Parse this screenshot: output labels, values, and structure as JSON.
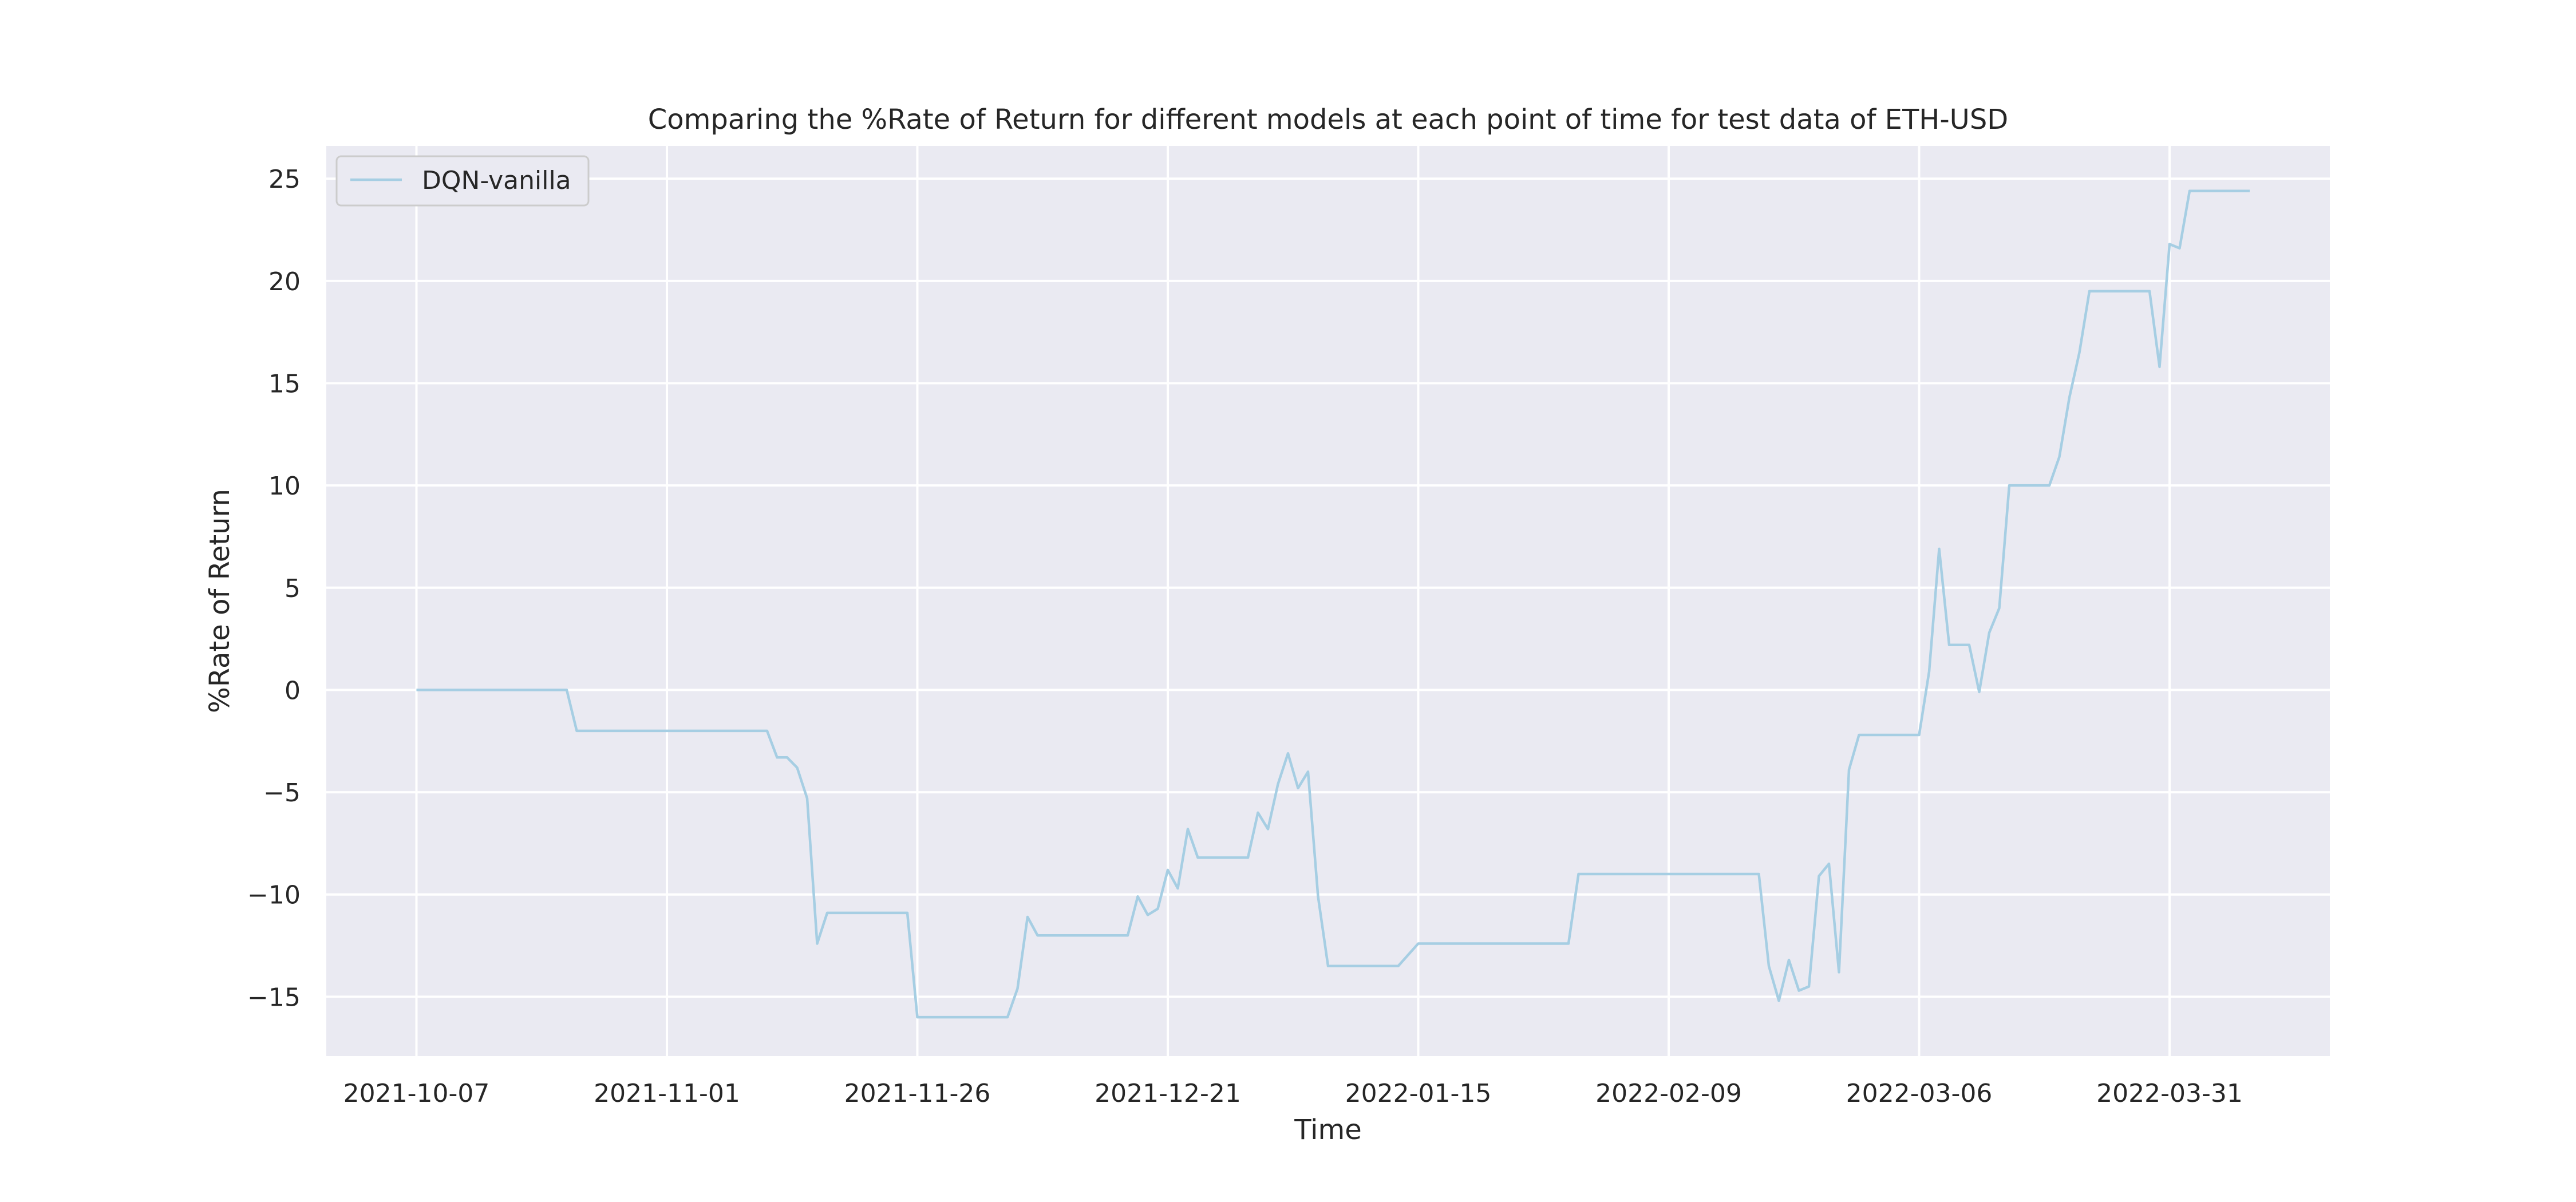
{
  "chart_data": {
    "type": "line",
    "title": "Comparing the %Rate of Return for different models at each point of time for test data of ETH-USD",
    "xlabel": "Time",
    "ylabel": "%Rate of Return",
    "x_ticks": [
      "2021-10-07",
      "2021-11-01",
      "2021-11-26",
      "2021-12-21",
      "2022-01-15",
      "2022-02-09",
      "2022-03-06",
      "2022-03-31"
    ],
    "y_ticks": [
      -15,
      -10,
      -5,
      0,
      5,
      10,
      15,
      20,
      25
    ],
    "xlim": [
      "2021-09-28",
      "2022-04-16"
    ],
    "ylim": [
      -17.9,
      26.6
    ],
    "grid": true,
    "legend_position": "top-left",
    "colors": {
      "background": "#eaeaf2",
      "grid": "#ffffff",
      "line": "#a6cee3"
    },
    "series": [
      {
        "name": "DQN-vanilla",
        "points": [
          [
            "2021-10-07",
            0.0
          ],
          [
            "2021-10-22",
            0.0
          ],
          [
            "2021-10-23",
            -2.0
          ],
          [
            "2021-11-11",
            -2.0
          ],
          [
            "2021-11-12",
            -3.3
          ],
          [
            "2021-11-13",
            -3.3
          ],
          [
            "2021-11-14",
            -3.8
          ],
          [
            "2021-11-15",
            -5.3
          ],
          [
            "2021-11-16",
            -12.4
          ],
          [
            "2021-11-17",
            -10.9
          ],
          [
            "2021-11-24",
            -10.9
          ],
          [
            "2021-11-25",
            -10.9
          ],
          [
            "2021-11-26",
            -16.0
          ],
          [
            "2021-12-04",
            -16.0
          ],
          [
            "2021-12-05",
            -16.0
          ],
          [
            "2021-12-06",
            -14.6
          ],
          [
            "2021-12-07",
            -11.1
          ],
          [
            "2021-12-08",
            -12.0
          ],
          [
            "2021-12-15",
            -12.0
          ],
          [
            "2021-12-17",
            -12.0
          ],
          [
            "2021-12-18",
            -10.1
          ],
          [
            "2021-12-19",
            -11.0
          ],
          [
            "2021-12-20",
            -10.7
          ],
          [
            "2021-12-21",
            -8.8
          ],
          [
            "2021-12-22",
            -9.7
          ],
          [
            "2021-12-23",
            -6.8
          ],
          [
            "2021-12-24",
            -8.2
          ],
          [
            "2021-12-29",
            -8.2
          ],
          [
            "2021-12-30",
            -6.0
          ],
          [
            "2021-12-31",
            -6.8
          ],
          [
            "2022-01-01",
            -4.6
          ],
          [
            "2022-01-02",
            -3.1
          ],
          [
            "2022-01-03",
            -4.8
          ],
          [
            "2022-01-04",
            -4.0
          ],
          [
            "2022-01-05",
            -10.1
          ],
          [
            "2022-01-06",
            -13.5
          ],
          [
            "2022-01-13",
            -13.5
          ],
          [
            "2022-01-15",
            -12.4
          ],
          [
            "2022-01-27",
            -12.4
          ],
          [
            "2022-01-30",
            -12.4
          ],
          [
            "2022-01-31",
            -9.0
          ],
          [
            "2022-02-11",
            -9.0
          ],
          [
            "2022-02-18",
            -9.0
          ],
          [
            "2022-02-19",
            -13.5
          ],
          [
            "2022-02-20",
            -15.2
          ],
          [
            "2022-02-21",
            -13.2
          ],
          [
            "2022-02-22",
            -14.7
          ],
          [
            "2022-02-23",
            -14.5
          ],
          [
            "2022-02-24",
            -9.1
          ],
          [
            "2022-02-25",
            -8.5
          ],
          [
            "2022-02-26",
            -13.8
          ],
          [
            "2022-02-27",
            -3.9
          ],
          [
            "2022-02-28",
            -2.2
          ],
          [
            "2022-03-06",
            -2.2
          ],
          [
            "2022-03-07",
            0.9
          ],
          [
            "2022-03-08",
            6.9
          ],
          [
            "2022-03-09",
            2.2
          ],
          [
            "2022-03-11",
            2.2
          ],
          [
            "2022-03-12",
            -0.1
          ],
          [
            "2022-03-13",
            2.8
          ],
          [
            "2022-03-14",
            4.0
          ],
          [
            "2022-03-15",
            10.0
          ],
          [
            "2022-03-18",
            10.0
          ],
          [
            "2022-03-19",
            10.0
          ],
          [
            "2022-03-20",
            11.4
          ],
          [
            "2022-03-21",
            14.3
          ],
          [
            "2022-03-22",
            16.5
          ],
          [
            "2022-03-23",
            19.5
          ],
          [
            "2022-03-29",
            19.5
          ],
          [
            "2022-03-30",
            15.8
          ],
          [
            "2022-03-31",
            21.8
          ],
          [
            "2022-04-01",
            21.6
          ],
          [
            "2022-04-02",
            24.4
          ],
          [
            "2022-04-08",
            24.4
          ]
        ]
      }
    ]
  }
}
